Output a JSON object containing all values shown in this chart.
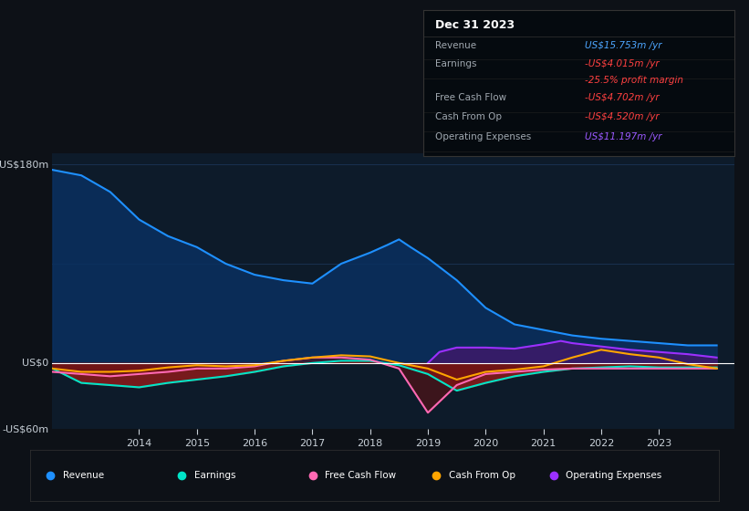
{
  "bg_color": "#0d1117",
  "plot_bg_color": "#0d1b2a",
  "grid_color": "#1e3a5f",
  "text_color": "#c8d0d8",
  "ylabel_top": "US$180m",
  "ylabel_zero": "US$0",
  "ylabel_bottom": "-US$60m",
  "ylim": [
    -60,
    190
  ],
  "xlim_start": 2012.5,
  "xlim_end": 2024.3,
  "xticks": [
    2014,
    2015,
    2016,
    2017,
    2018,
    2019,
    2020,
    2021,
    2022,
    2023
  ],
  "revenue_color": "#1e90ff",
  "revenue_fill_color": "#0a3060",
  "earnings_color": "#00e5c8",
  "earnings_fill_color": "#8b1a1a",
  "fcf_color": "#ff69b4",
  "cashfromop_color": "#ffa500",
  "opex_color": "#9b30ff",
  "opex_fill_color": "#3d1a6b",
  "revenue": {
    "x": [
      2012.5,
      2013.0,
      2013.5,
      2014.0,
      2014.5,
      2015.0,
      2015.5,
      2016.0,
      2016.5,
      2017.0,
      2017.5,
      2018.0,
      2018.3,
      2018.5,
      2018.7,
      2019.0,
      2019.5,
      2020.0,
      2020.5,
      2021.0,
      2021.5,
      2022.0,
      2022.5,
      2023.0,
      2023.5,
      2024.0
    ],
    "y": [
      175,
      170,
      155,
      130,
      115,
      105,
      90,
      80,
      75,
      72,
      90,
      100,
      107,
      112,
      105,
      95,
      75,
      50,
      35,
      30,
      25,
      22,
      20,
      18,
      16,
      16
    ]
  },
  "earnings": {
    "x": [
      2012.5,
      2013.0,
      2013.5,
      2014.0,
      2014.5,
      2015.0,
      2015.5,
      2016.0,
      2016.5,
      2017.0,
      2017.5,
      2018.0,
      2018.5,
      2019.0,
      2019.5,
      2020.0,
      2020.5,
      2021.0,
      2021.5,
      2022.0,
      2022.5,
      2023.0,
      2023.5,
      2024.0
    ],
    "y": [
      -5,
      -18,
      -20,
      -22,
      -18,
      -15,
      -12,
      -8,
      -3,
      0,
      2,
      2,
      -2,
      -10,
      -25,
      -18,
      -12,
      -8,
      -5,
      -4,
      -3,
      -4,
      -4,
      -4
    ]
  },
  "fcf": {
    "x": [
      2012.5,
      2013.0,
      2013.5,
      2014.0,
      2014.5,
      2015.0,
      2015.5,
      2016.0,
      2016.5,
      2017.0,
      2017.5,
      2018.0,
      2018.5,
      2019.0,
      2019.5,
      2020.0,
      2020.5,
      2021.0,
      2021.5,
      2022.0,
      2022.5,
      2023.0,
      2023.5,
      2024.0
    ],
    "y": [
      -8,
      -10,
      -12,
      -10,
      -8,
      -5,
      -5,
      -3,
      2,
      5,
      5,
      3,
      -5,
      -45,
      -20,
      -10,
      -8,
      -6,
      -5,
      -5,
      -5,
      -5,
      -5,
      -5
    ]
  },
  "cashfromop": {
    "x": [
      2012.5,
      2013.0,
      2013.5,
      2014.0,
      2014.5,
      2015.0,
      2015.5,
      2016.0,
      2016.5,
      2017.0,
      2017.5,
      2018.0,
      2018.5,
      2019.0,
      2019.5,
      2020.0,
      2020.5,
      2021.0,
      2021.5,
      2022.0,
      2022.5,
      2023.0,
      2023.5,
      2024.0
    ],
    "y": [
      -5,
      -8,
      -8,
      -7,
      -4,
      -2,
      -3,
      -2,
      2,
      5,
      7,
      6,
      0,
      -5,
      -15,
      -8,
      -6,
      -3,
      5,
      12,
      8,
      5,
      -1,
      -5
    ]
  },
  "opex": {
    "x": [
      2019.0,
      2019.2,
      2019.5,
      2020.0,
      2020.5,
      2021.0,
      2021.3,
      2021.5,
      2022.0,
      2022.5,
      2023.0,
      2023.5,
      2024.0
    ],
    "y": [
      0,
      10,
      14,
      14,
      13,
      17,
      20,
      18,
      15,
      12,
      10,
      8,
      5
    ]
  },
  "info_box": {
    "title": "Dec 31 2023",
    "rows": [
      {
        "label": "Revenue",
        "value": "US$15.753m /yr",
        "value_color": "#4da6ff"
      },
      {
        "label": "Earnings",
        "value": "-US$4.015m /yr",
        "value_color": "#ff4040"
      },
      {
        "label": "",
        "value": "-25.5% profit margin",
        "value_color": "#ff4040"
      },
      {
        "label": "Free Cash Flow",
        "value": "-US$4.702m /yr",
        "value_color": "#ff4040"
      },
      {
        "label": "Cash From Op",
        "value": "-US$4.520m /yr",
        "value_color": "#ff4040"
      },
      {
        "label": "Operating Expenses",
        "value": "US$11.197m /yr",
        "value_color": "#9b59ff"
      }
    ]
  },
  "legend": [
    {
      "label": "Revenue",
      "color": "#1e90ff"
    },
    {
      "label": "Earnings",
      "color": "#00e5c8"
    },
    {
      "label": "Free Cash Flow",
      "color": "#ff69b4"
    },
    {
      "label": "Cash From Op",
      "color": "#ffa500"
    },
    {
      "label": "Operating Expenses",
      "color": "#9b30ff"
    }
  ]
}
